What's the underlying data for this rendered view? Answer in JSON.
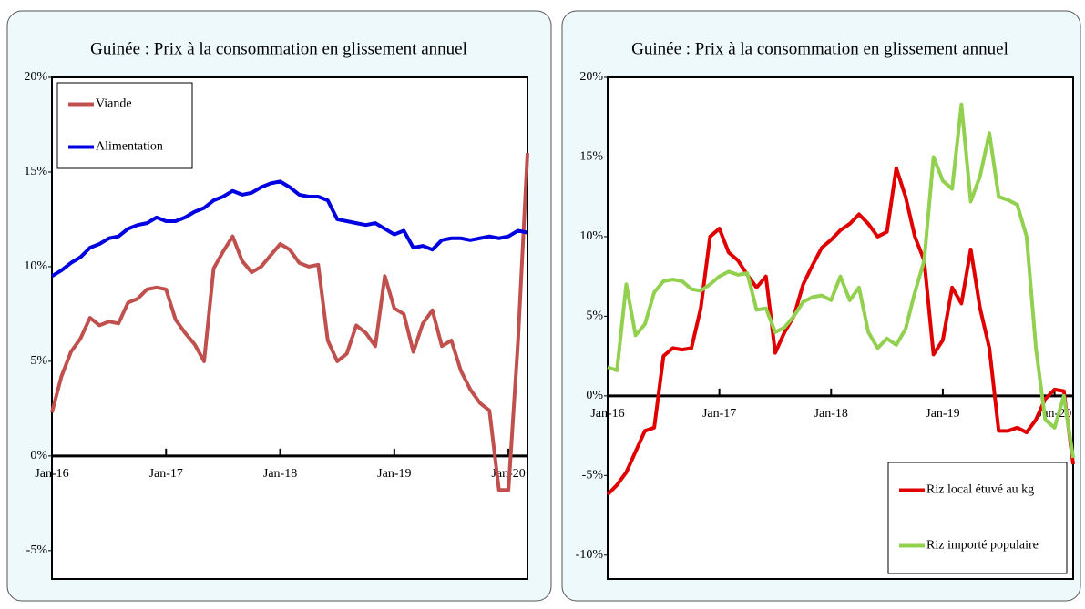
{
  "chart_data": [
    {
      "type": "line",
      "title": "Guinée : Prix à la consommation en glissement annuel",
      "categories": [
        "Jan-16",
        null,
        null,
        null,
        null,
        null,
        null,
        null,
        null,
        null,
        null,
        null,
        "Jan-17",
        null,
        null,
        null,
        null,
        null,
        null,
        null,
        null,
        null,
        null,
        null,
        "Jan-18",
        null,
        null,
        null,
        null,
        null,
        null,
        null,
        null,
        null,
        null,
        null,
        "Jan-19",
        null,
        null,
        null,
        null,
        null,
        null,
        null,
        null,
        null,
        null,
        null,
        "Jan-20",
        null,
        null
      ],
      "series": [
        {
          "name": "Viande",
          "color": "#c0504d",
          "values": [
            2.3,
            4.2,
            5.5,
            6.2,
            7.3,
            6.9,
            7.1,
            7.0,
            8.1,
            8.3,
            8.8,
            8.9,
            8.8,
            7.2,
            6.5,
            5.9,
            5.0,
            9.9,
            10.8,
            11.6,
            10.3,
            9.7,
            10.0,
            10.6,
            11.2,
            10.9,
            10.2,
            10.0,
            10.1,
            6.1,
            5.0,
            5.4,
            6.9,
            6.5,
            5.8,
            9.5,
            7.8,
            7.5,
            5.5,
            7.0,
            7.7,
            5.8,
            6.1,
            4.5,
            3.5,
            2.8,
            2.4,
            -1.8,
            -1.8,
            6.0,
            16.0
          ]
        },
        {
          "name": "Alimentation",
          "color": "#0000e0",
          "values": [
            9.5,
            9.8,
            10.2,
            10.5,
            11.0,
            11.2,
            11.5,
            11.6,
            12.0,
            12.2,
            12.3,
            12.6,
            12.4,
            12.4,
            12.6,
            12.9,
            13.1,
            13.5,
            13.7,
            14.0,
            13.8,
            13.9,
            14.2,
            14.4,
            14.5,
            14.2,
            13.8,
            13.7,
            13.7,
            13.5,
            12.5,
            12.4,
            12.3,
            12.2,
            12.3,
            12.0,
            11.7,
            11.9,
            11.0,
            11.1,
            10.9,
            11.4,
            11.5,
            11.5,
            11.4,
            11.5,
            11.6,
            11.5,
            11.6,
            11.9,
            11.8
          ]
        }
      ],
      "ylim": [
        -6.5,
        20
      ],
      "yticks": [
        {
          "value": -5,
          "label": "-5%"
        },
        {
          "value": 0,
          "label": "0%"
        },
        {
          "value": 5,
          "label": "5%"
        },
        {
          "value": 10,
          "label": "10%"
        },
        {
          "value": 15,
          "label": "15%"
        },
        {
          "value": 20,
          "label": "20%"
        }
      ],
      "legend": "upper left"
    },
    {
      "type": "line",
      "title": "Guinée : Prix à la consommation en glissement annuel",
      "categories": [
        "Jan-16",
        null,
        null,
        null,
        null,
        null,
        null,
        null,
        null,
        null,
        null,
        null,
        "Jan-17",
        null,
        null,
        null,
        null,
        null,
        null,
        null,
        null,
        null,
        null,
        null,
        "Jan-18",
        null,
        null,
        null,
        null,
        null,
        null,
        null,
        null,
        null,
        null,
        null,
        "Jan-19",
        null,
        null,
        null,
        null,
        null,
        null,
        null,
        null,
        null,
        null,
        null,
        "Jan-20",
        null,
        null
      ],
      "series": [
        {
          "name": "Riz local étuvé au kg",
          "color": "#e00000",
          "values": [
            -6.2,
            -5.6,
            -4.8,
            -3.5,
            -2.2,
            -2.0,
            2.5,
            3.0,
            2.9,
            3.0,
            5.5,
            10.0,
            10.5,
            9.0,
            8.5,
            7.6,
            6.8,
            7.5,
            2.7,
            4.0,
            5.0,
            7.0,
            8.2,
            9.3,
            9.8,
            10.4,
            10.8,
            11.4,
            10.8,
            10.0,
            10.3,
            14.3,
            12.5,
            10.0,
            8.5,
            2.6,
            3.5,
            6.8,
            5.8,
            9.2,
            5.5,
            3.0,
            -2.2,
            -2.2,
            -2.0,
            -2.3,
            -1.5,
            -0.2,
            0.4,
            0.3,
            -4.3
          ]
        },
        {
          "name": "Riz importé populaire",
          "color": "#92d050",
          "values": [
            1.8,
            1.6,
            7.0,
            3.8,
            4.5,
            6.5,
            7.2,
            7.3,
            7.2,
            6.7,
            6.6,
            7.0,
            7.5,
            7.8,
            7.6,
            7.7,
            5.4,
            5.5,
            4.0,
            4.3,
            5.0,
            5.9,
            6.2,
            6.3,
            6.0,
            7.5,
            6.0,
            6.8,
            4.0,
            3.0,
            3.6,
            3.2,
            4.2,
            6.5,
            8.5,
            15.0,
            13.5,
            13.0,
            18.3,
            12.2,
            13.8,
            16.5,
            12.5,
            12.3,
            12.0,
            10.0,
            3.0,
            -1.5,
            -2.0,
            0.0,
            -3.9
          ]
        }
      ],
      "ylim": [
        -11.5,
        20
      ],
      "yticks": [
        {
          "value": -10,
          "label": "-10%"
        },
        {
          "value": -5,
          "label": "-5%"
        },
        {
          "value": 0,
          "label": "0%"
        },
        {
          "value": 5,
          "label": "5%"
        },
        {
          "value": 10,
          "label": "10%"
        },
        {
          "value": 15,
          "label": "15%"
        },
        {
          "value": 20,
          "label": "20%"
        }
      ],
      "legend": "lower right"
    }
  ]
}
